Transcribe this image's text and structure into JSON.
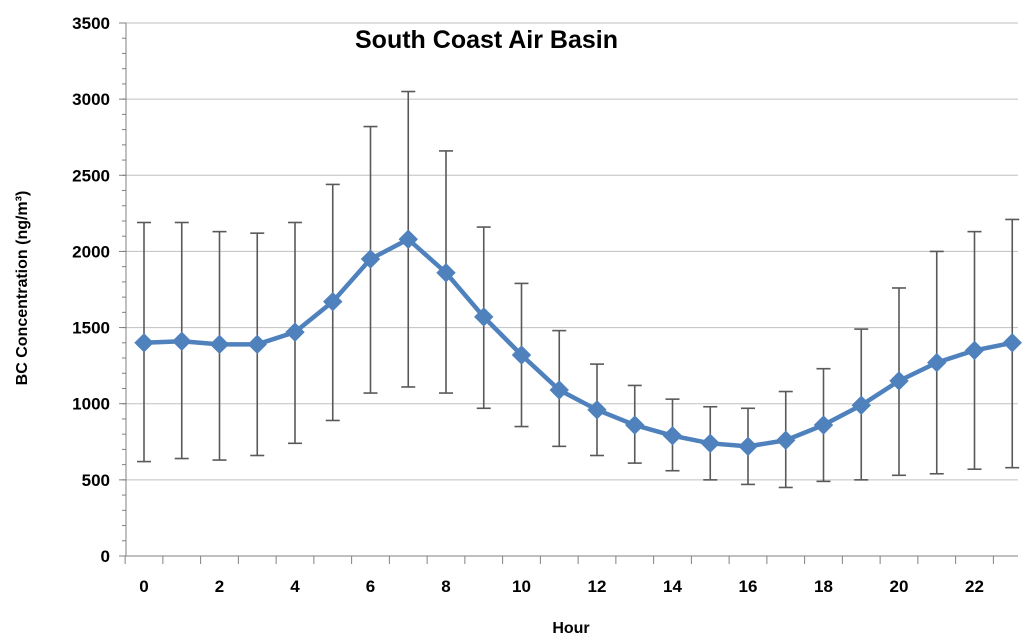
{
  "chart_data": {
    "type": "line",
    "title": "South Coast Air Basin",
    "xlabel": "Hour",
    "ylabel": "BC Concentration (ng/m³)",
    "ylim": [
      0,
      3500
    ],
    "ytick_step": 500,
    "yticks": [
      "0",
      "500",
      "1000",
      "1500",
      "2000",
      "2500",
      "3000",
      "3500"
    ],
    "xticks": [
      "0",
      "2",
      "4",
      "6",
      "8",
      "10",
      "12",
      "14",
      "16",
      "18",
      "20",
      "22"
    ],
    "grid": "horizontal",
    "legend": "none",
    "series": [
      {
        "color": "#4f81bd",
        "marker": "diamond",
        "x": [
          0,
          1,
          2,
          3,
          4,
          5,
          6,
          7,
          8,
          9,
          10,
          11,
          12,
          13,
          14,
          15,
          16,
          17,
          18,
          19,
          20,
          21,
          22,
          23
        ],
        "values": [
          1400,
          1410,
          1390,
          1390,
          1470,
          1670,
          1950,
          2080,
          1860,
          1570,
          1320,
          1090,
          960,
          860,
          790,
          740,
          720,
          760,
          860,
          990,
          1150,
          1270,
          1350,
          1400
        ],
        "error_low": [
          620,
          640,
          630,
          660,
          740,
          890,
          1070,
          1110,
          1070,
          970,
          850,
          720,
          660,
          610,
          560,
          500,
          470,
          450,
          490,
          500,
          530,
          540,
          570,
          580
        ],
        "error_high": [
          2190,
          2190,
          2130,
          2120,
          2190,
          2440,
          2820,
          3050,
          2660,
          2160,
          1790,
          1480,
          1260,
          1120,
          1030,
          980,
          970,
          1080,
          1230,
          1490,
          1760,
          2000,
          2130,
          2210
        ]
      }
    ]
  },
  "colors": {
    "series": "#4f81bd",
    "error_bar": "#595959",
    "grid": "#c0c0c0",
    "axis": "#808080"
  }
}
